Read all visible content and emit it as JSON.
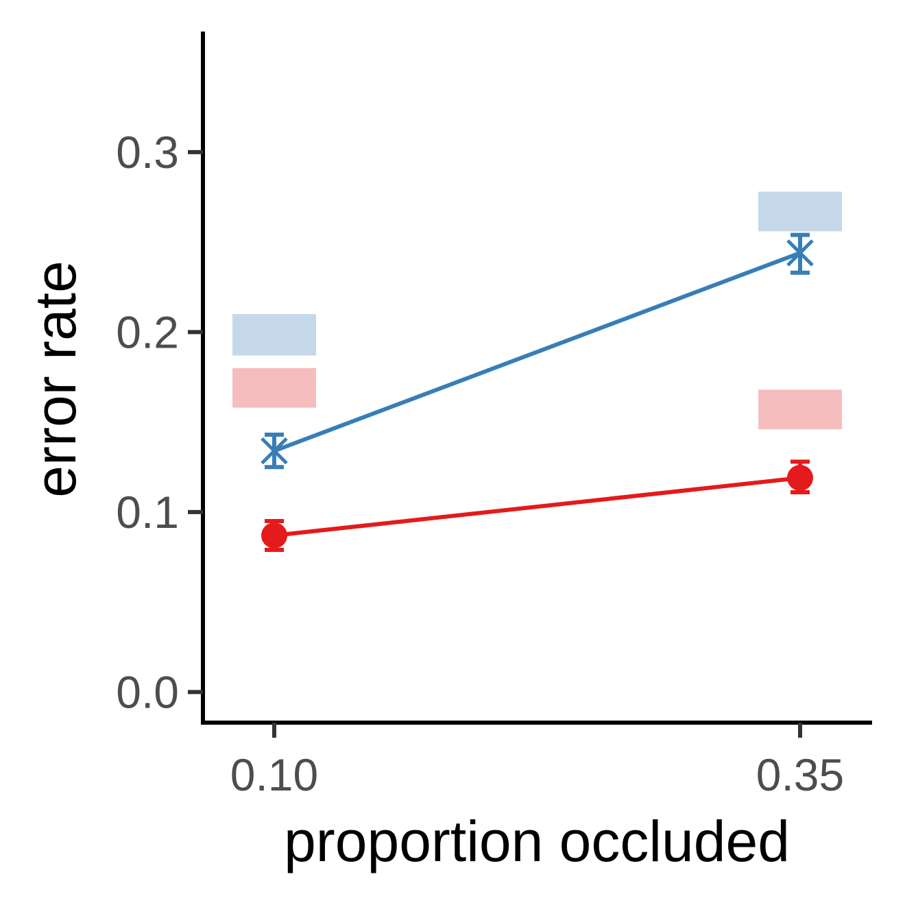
{
  "chart_data": {
    "type": "line",
    "xlabel": "proportion occluded",
    "ylabel": "error rate",
    "categories": [
      "0.10",
      "0.35"
    ],
    "x": [
      0.1,
      0.35
    ],
    "ylim": [
      -0.017,
      0.367
    ],
    "y_ticks": [
      0.0,
      0.1,
      0.2,
      0.3
    ],
    "y_tick_labels": [
      "0.0",
      "0.1",
      "0.2",
      "0.3"
    ],
    "grid": false,
    "legend": "none",
    "series": [
      {
        "color": "#377eb8",
        "marker": "x",
        "values": [
          0.134,
          0.244
        ],
        "err_low": [
          0.125,
          0.233
        ],
        "err_high": [
          0.143,
          0.254
        ],
        "band_color": "#c4d8e9",
        "band_low": [
          0.187,
          0.256
        ],
        "band_high": [
          0.21,
          0.278
        ]
      },
      {
        "color": "#e41a1c",
        "marker": "circle",
        "values": [
          0.087,
          0.119
        ],
        "err_low": [
          0.079,
          0.111
        ],
        "err_high": [
          0.095,
          0.128
        ],
        "band_color": "#f6bdbe",
        "band_low": [
          0.158,
          0.146
        ],
        "band_high": [
          0.18,
          0.168
        ]
      }
    ]
  }
}
